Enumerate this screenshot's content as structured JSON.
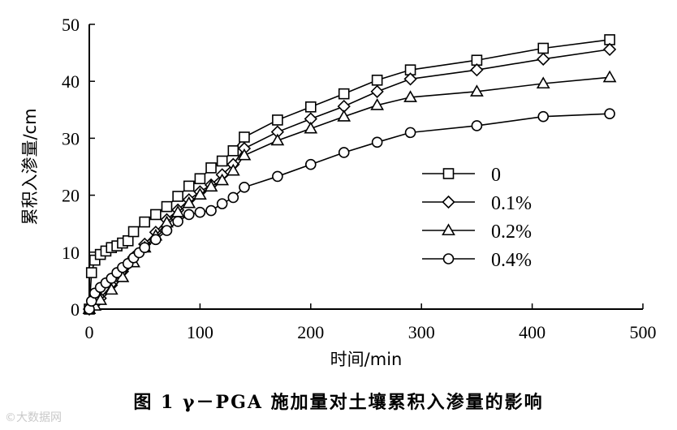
{
  "chart_data": {
    "type": "line",
    "xlabel": "时间/min",
    "ylabel": "累积入渗量/cm",
    "xlim": [
      0,
      500
    ],
    "ylim": [
      0,
      50
    ],
    "xticks": [
      0,
      100,
      200,
      300,
      400,
      500
    ],
    "yticks": [
      0,
      10,
      20,
      30,
      40,
      50
    ],
    "grid": false,
    "legend_position": "right-middle",
    "series": [
      {
        "name": "0",
        "marker": "square",
        "x": [
          0,
          2,
          5,
          10,
          15,
          20,
          25,
          30,
          35,
          40,
          50,
          60,
          70,
          80,
          90,
          100,
          110,
          120,
          130,
          140,
          170,
          200,
          230,
          260,
          290,
          350,
          410,
          470
        ],
        "y": [
          0,
          6.4,
          8.6,
          9.6,
          10.2,
          10.8,
          11.1,
          11.6,
          12.0,
          13.6,
          15.3,
          16.6,
          18.0,
          19.8,
          21.6,
          22.9,
          24.8,
          26.0,
          27.8,
          30.2,
          33.2,
          35.5,
          37.8,
          40.2,
          42.0,
          43.7,
          45.8,
          47.3
        ]
      },
      {
        "name": "0.1%",
        "marker": "diamond",
        "x": [
          0,
          5,
          10,
          20,
          30,
          40,
          50,
          60,
          70,
          80,
          90,
          100,
          110,
          120,
          130,
          140,
          170,
          200,
          230,
          260,
          290,
          350,
          410,
          470
        ],
        "y": [
          0,
          0.9,
          1.9,
          4.2,
          6.6,
          9.1,
          11.4,
          13.5,
          15.7,
          17.4,
          19.2,
          20.6,
          21.8,
          23.6,
          25.4,
          28.2,
          31.1,
          33.4,
          35.6,
          38.2,
          40.4,
          42.0,
          43.9,
          45.6
        ]
      },
      {
        "name": "0.2%",
        "marker": "triangle",
        "x": [
          0,
          5,
          10,
          20,
          30,
          40,
          50,
          60,
          70,
          80,
          90,
          100,
          110,
          120,
          130,
          140,
          170,
          200,
          230,
          260,
          290,
          350,
          410,
          470
        ],
        "y": [
          0,
          0.6,
          1.6,
          3.4,
          5.6,
          8.2,
          10.8,
          12.9,
          15.2,
          17.0,
          18.6,
          20.1,
          21.5,
          22.6,
          24.3,
          27.0,
          29.6,
          31.7,
          33.8,
          35.8,
          37.2,
          38.2,
          39.6,
          40.7
        ]
      },
      {
        "name": "0.4%",
        "marker": "circle",
        "x": [
          0,
          2,
          5,
          10,
          15,
          20,
          25,
          30,
          35,
          40,
          45,
          50,
          60,
          70,
          80,
          90,
          100,
          110,
          120,
          130,
          140,
          170,
          200,
          230,
          260,
          290,
          350,
          410,
          470
        ],
        "y": [
          0,
          1.4,
          2.8,
          3.8,
          4.6,
          5.4,
          6.4,
          7.3,
          8.0,
          9.0,
          9.9,
          10.8,
          12.2,
          13.8,
          15.4,
          16.6,
          17.0,
          17.3,
          18.5,
          19.6,
          21.4,
          23.3,
          25.4,
          27.5,
          29.3,
          31.0,
          32.2,
          33.8,
          34.3
        ]
      }
    ]
  },
  "caption": "图 1   γ－PGA 施加量对土壤累积入渗量的影响",
  "watermark": "©大数据网"
}
